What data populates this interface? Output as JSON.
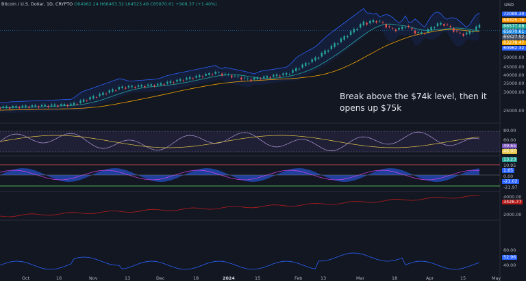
{
  "header": {
    "symbol": "Bitcoin / U.S. Dollar, 1D, CRYPTO",
    "ohlc": "O64962.24  H66463.32  L64523.48  C65870.61  +908.37 (+1.40%)",
    "currency": "USD"
  },
  "annotation": {
    "line1": "Break above the $74k level, then it",
    "line2": "opens up $75k"
  },
  "colors": {
    "background": "#131722",
    "up": "#26a69a",
    "down": "#ef5350",
    "bollinger": "#2962ff",
    "ma_orange": "#f7a600",
    "rsi": "#b39ddb",
    "rsi_ma": "#e6c84a",
    "osc_blue": "#2962ff",
    "line_red": "#b71c1c"
  },
  "price_axis": {
    "labels": [
      "75000.00",
      "70000.00",
      "65000.00",
      "60000.00",
      "55000.00",
      "50000.00",
      "45000.00",
      "40000.00",
      "35000.00",
      "30000.00",
      "25000.00"
    ],
    "badges": [
      {
        "text": "72089.30",
        "color": "#2962ff"
      },
      {
        "text": "68325.76",
        "color": "#ff9800"
      },
      {
        "text": "66577.08",
        "color": "#26a69a"
      },
      {
        "text": "65870.61",
        "color": "#1e88e5"
      },
      {
        "text": "65527.52",
        "color": "#4a5568"
      },
      {
        "text": "63278.47",
        "color": "#f7a600"
      },
      {
        "text": "60962.32",
        "color": "#2962ff"
      }
    ]
  },
  "rsi_axis": {
    "labels": [
      "80.00",
      "60.00",
      "40.00"
    ],
    "badges": [
      {
        "text": "49.65",
        "color": "#7e57c2"
      },
      {
        "text": "46.97",
        "color": "#e6c84a"
      }
    ]
  },
  "osc_axis": {
    "labels": [
      "10.95",
      "0.00",
      "-21.97"
    ],
    "badges": [
      {
        "text": "13.23",
        "color": "#26a69a"
      },
      {
        "text": "1.65",
        "color": "#2962ff"
      },
      {
        "text": "-21.02",
        "color": "#2962ff"
      }
    ]
  },
  "line_axis": {
    "labels": [
      "4000.00",
      "2000.00"
    ],
    "badges": [
      {
        "text": "3426.77",
        "color": "#b71c1c"
      }
    ]
  },
  "bottom_axis": {
    "labels": [
      "80.00",
      "40.00"
    ],
    "badges": [
      {
        "text": "52.96",
        "color": "#2962ff"
      }
    ]
  },
  "time_axis": [
    "Oct",
    "16",
    "Nov",
    "13",
    "Dec",
    "18",
    "2024",
    "15",
    "Feb",
    "13",
    "Mar",
    "18",
    "Apr",
    "15",
    "May"
  ]
}
